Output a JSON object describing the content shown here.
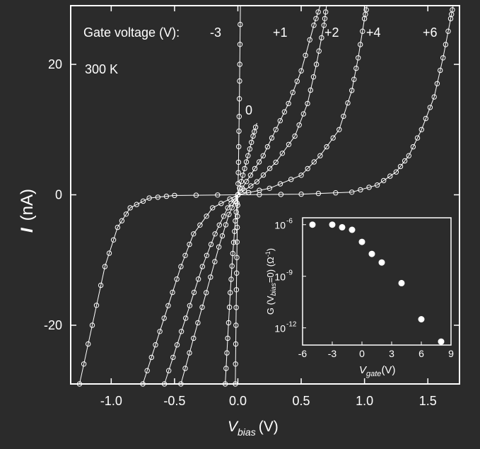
{
  "chart_data": [
    {
      "type": "scatter",
      "title": "",
      "xlabel_main": "V",
      "xlabel_sub": "bias",
      "xlabel_unit": "(V)",
      "ylabel_main": "I",
      "ylabel_unit": "(nA)",
      "xlim": [
        -1.32,
        1.75
      ],
      "ylim": [
        -29,
        29
      ],
      "xticks": [
        -1.0,
        -0.5,
        0.0,
        0.5,
        1.0,
        1.5
      ],
      "xtick_labels": [
        "-1.0",
        "-0.5",
        "0.0",
        "0.5",
        "1.0",
        "1.5"
      ],
      "yticks": [
        -20,
        0,
        20
      ],
      "ytick_labels": [
        "-20",
        "0",
        "20"
      ],
      "annotation_header": "Gate voltage (V):",
      "temperature_label": "300 K",
      "grid": false,
      "series": [
        {
          "name": "-3",
          "values": [
            [
              -0.02,
              -29
            ],
            [
              -0.015,
              -20
            ],
            [
              -0.01,
              -12
            ],
            [
              -0.005,
              -5
            ],
            [
              0,
              0
            ],
            [
              0.005,
              5
            ],
            [
              0.01,
              12
            ],
            [
              0.015,
              20
            ],
            [
              0.02,
              29
            ]
          ]
        },
        {
          "name": "0",
          "values": [
            [
              -0.1,
              -29
            ],
            [
              -0.08,
              -22
            ],
            [
              -0.06,
              -15
            ],
            [
              -0.04,
              -9
            ],
            [
              -0.02,
              -4
            ],
            [
              0,
              0
            ],
            [
              0.04,
              3
            ],
            [
              0.08,
              6
            ],
            [
              0.12,
              9
            ],
            [
              0.15,
              11
            ]
          ]
        },
        {
          "name": "+1",
          "values": [
            [
              -0.45,
              -29
            ],
            [
              -0.35,
              -22
            ],
            [
              -0.25,
              -15
            ],
            [
              -0.15,
              -8
            ],
            [
              -0.07,
              -3
            ],
            [
              0,
              0
            ],
            [
              0.1,
              3
            ],
            [
              0.2,
              6
            ],
            [
              0.3,
              10
            ],
            [
              0.4,
              14
            ],
            [
              0.5,
              19
            ],
            [
              0.6,
              26
            ],
            [
              0.65,
              29
            ]
          ]
        },
        {
          "name": "+2",
          "values": [
            [
              -0.58,
              -29
            ],
            [
              -0.48,
              -23
            ],
            [
              -0.38,
              -17
            ],
            [
              -0.28,
              -11
            ],
            [
              -0.18,
              -6
            ],
            [
              -0.08,
              -2
            ],
            [
              0,
              0
            ],
            [
              0.15,
              2
            ],
            [
              0.3,
              5
            ],
            [
              0.45,
              9
            ],
            [
              0.55,
              14
            ],
            [
              0.62,
              20
            ],
            [
              0.68,
              26
            ],
            [
              0.7,
              29
            ]
          ]
        },
        {
          "name": "+4",
          "values": [
            [
              -0.75,
              -29
            ],
            [
              -0.65,
              -23
            ],
            [
              -0.55,
              -17
            ],
            [
              -0.45,
              -11
            ],
            [
              -0.35,
              -6
            ],
            [
              -0.2,
              -2
            ],
            [
              0,
              0
            ],
            [
              0.25,
              1
            ],
            [
              0.5,
              3
            ],
            [
              0.65,
              6
            ],
            [
              0.8,
              10
            ],
            [
              0.9,
              16
            ],
            [
              0.95,
              21
            ],
            [
              1.0,
              27
            ],
            [
              1.02,
              29
            ]
          ]
        },
        {
          "name": "+6",
          "values": [
            [
              -1.25,
              -29
            ],
            [
              -1.15,
              -20
            ],
            [
              -1.05,
              -11
            ],
            [
              -0.95,
              -5
            ],
            [
              -0.85,
              -2
            ],
            [
              -0.7,
              -0.5
            ],
            [
              -0.5,
              -0.1
            ],
            [
              0,
              0
            ],
            [
              0.5,
              0.1
            ],
            [
              0.9,
              0.4
            ],
            [
              1.1,
              1.5
            ],
            [
              1.25,
              3.5
            ],
            [
              1.35,
              6
            ],
            [
              1.45,
              10
            ],
            [
              1.55,
              15
            ],
            [
              1.62,
              21
            ],
            [
              1.68,
              27
            ],
            [
              1.7,
              29
            ]
          ]
        }
      ],
      "series_label_positions_note": ""
    },
    {
      "type": "scatter",
      "title": "",
      "xlabel_main": "V",
      "xlabel_sub": "gate",
      "xlabel_unit": "(V)",
      "ylabel_text": "G (V",
      "ylabel_sub": "bias",
      "ylabel_tail": "=0) (Ω",
      "ylabel_sup": "-1",
      "ylabel_close": ")",
      "log_scale_y": true,
      "xlim": [
        -6,
        9
      ],
      "ylim_exp": [
        -13,
        -5.6
      ],
      "xticks": [
        -6,
        -3,
        0,
        3,
        6,
        9
      ],
      "xtick_labels": [
        "-6",
        "-3",
        "0",
        "3",
        "6",
        "9"
      ],
      "yticks_exp": [
        -6,
        -9,
        -12
      ],
      "ytick_labels": [
        "10",
        "10",
        "10"
      ],
      "ytick_exponents": [
        "-6",
        "-9",
        "-12"
      ],
      "points": [
        [
          -5,
          -6.0
        ],
        [
          -3,
          -6.0
        ],
        [
          -2,
          -6.15
        ],
        [
          -1,
          -6.3
        ],
        [
          0,
          -7.0
        ],
        [
          1,
          -7.7
        ],
        [
          2,
          -8.2
        ],
        [
          4,
          -9.4
        ],
        [
          6,
          -11.5
        ],
        [
          8,
          -12.8
        ]
      ]
    }
  ]
}
